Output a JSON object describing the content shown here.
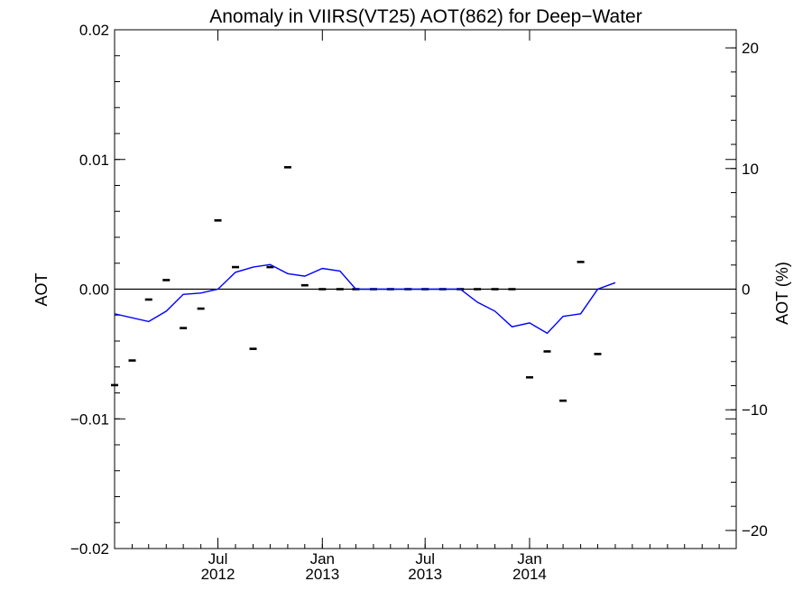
{
  "chart_data": {
    "type": "scatter",
    "title": "Anomaly in VIIRS(VT25) AOT(862) for Deep−Water",
    "ylabel": "AOT",
    "y2label": "AOT (%)",
    "ylim": [
      -0.02,
      0.02
    ],
    "y2lim": [
      -21.5,
      21.5
    ],
    "yticks": [
      "-0.02",
      "-0.01",
      "0.00",
      "0.01",
      "0.02"
    ],
    "yticks_display": [
      "−0.02",
      "−0.01",
      "0.00",
      "0.01",
      "0.02"
    ],
    "yticks_values": [
      -0.02,
      -0.01,
      0.0,
      0.01,
      0.02
    ],
    "y2ticks_display": [
      "−20",
      "−10",
      "0",
      "10",
      "20"
    ],
    "y2ticks_values": [
      -20,
      -10,
      0,
      10,
      20
    ],
    "xlim": [
      "2012-01-01",
      "2014-12-31"
    ],
    "xticks": [
      {
        "date": "2012-07-01",
        "month": "Jul",
        "year": "2012"
      },
      {
        "date": "2013-01-01",
        "month": "Jan",
        "year": "2013"
      },
      {
        "date": "2013-07-01",
        "month": "Jul",
        "year": "2013"
      },
      {
        "date": "2014-01-01",
        "month": "Jan",
        "year": "2014"
      }
    ],
    "zero_line": true,
    "series": [
      {
        "kind": "markers",
        "color": "#000000",
        "points": [
          {
            "x": "2012-01-01",
            "y": -0.0074
          },
          {
            "x": "2012-02-01",
            "y": -0.0055
          },
          {
            "x": "2012-03-01",
            "y": -0.0008
          },
          {
            "x": "2012-04-01",
            "y": 0.0007
          },
          {
            "x": "2012-05-01",
            "y": -0.003
          },
          {
            "x": "2012-06-01",
            "y": -0.0015
          },
          {
            "x": "2012-07-01",
            "y": 0.0053
          },
          {
            "x": "2012-08-01",
            "y": 0.0017
          },
          {
            "x": "2012-09-01",
            "y": -0.0046
          },
          {
            "x": "2012-10-01",
            "y": 0.0017
          },
          {
            "x": "2012-11-01",
            "y": 0.0094
          },
          {
            "x": "2012-12-01",
            "y": 0.0003
          },
          {
            "x": "2013-01-01",
            "y": 0.0
          },
          {
            "x": "2013-02-01",
            "y": 0.0
          },
          {
            "x": "2013-03-01",
            "y": 0.0
          },
          {
            "x": "2013-04-01",
            "y": 0.0
          },
          {
            "x": "2013-05-01",
            "y": 0.0
          },
          {
            "x": "2013-06-01",
            "y": 0.0
          },
          {
            "x": "2013-07-01",
            "y": 0.0
          },
          {
            "x": "2013-08-01",
            "y": 0.0
          },
          {
            "x": "2013-09-01",
            "y": 0.0
          },
          {
            "x": "2013-10-01",
            "y": 0.0
          },
          {
            "x": "2013-11-01",
            "y": 0.0
          },
          {
            "x": "2013-12-01",
            "y": 0.0
          },
          {
            "x": "2014-01-01",
            "y": -0.0068
          },
          {
            "x": "2014-02-01",
            "y": -0.0048
          },
          {
            "x": "2014-03-01",
            "y": -0.0086
          },
          {
            "x": "2014-04-01",
            "y": 0.0021
          },
          {
            "x": "2014-05-01",
            "y": -0.005
          }
        ]
      },
      {
        "kind": "line",
        "color": "#0000ff",
        "points": [
          {
            "x": "2012-01-01",
            "y": -0.0019
          },
          {
            "x": "2012-03-01",
            "y": -0.0025
          },
          {
            "x": "2012-04-01",
            "y": -0.0017
          },
          {
            "x": "2012-05-01",
            "y": -0.0004
          },
          {
            "x": "2012-06-01",
            "y": -0.0003
          },
          {
            "x": "2012-07-01",
            "y": 0.0
          },
          {
            "x": "2012-08-01",
            "y": 0.0013
          },
          {
            "x": "2012-09-01",
            "y": 0.0017
          },
          {
            "x": "2012-10-01",
            "y": 0.0019
          },
          {
            "x": "2012-11-01",
            "y": 0.0012
          },
          {
            "x": "2012-12-01",
            "y": 0.001
          },
          {
            "x": "2013-01-01",
            "y": 0.0016
          },
          {
            "x": "2013-02-01",
            "y": 0.0014
          },
          {
            "x": "2013-03-01",
            "y": 0.0
          },
          {
            "x": "2013-09-01",
            "y": 0.0
          },
          {
            "x": "2013-10-01",
            "y": -0.001
          },
          {
            "x": "2013-11-01",
            "y": -0.0017
          },
          {
            "x": "2013-12-01",
            "y": -0.0029
          },
          {
            "x": "2014-01-01",
            "y": -0.0026
          },
          {
            "x": "2014-02-01",
            "y": -0.0034
          },
          {
            "x": "2014-03-01",
            "y": -0.0021
          },
          {
            "x": "2014-04-01",
            "y": -0.0019
          },
          {
            "x": "2014-05-01",
            "y": 0.0
          },
          {
            "x": "2014-06-01",
            "y": 0.0005
          }
        ]
      }
    ]
  }
}
